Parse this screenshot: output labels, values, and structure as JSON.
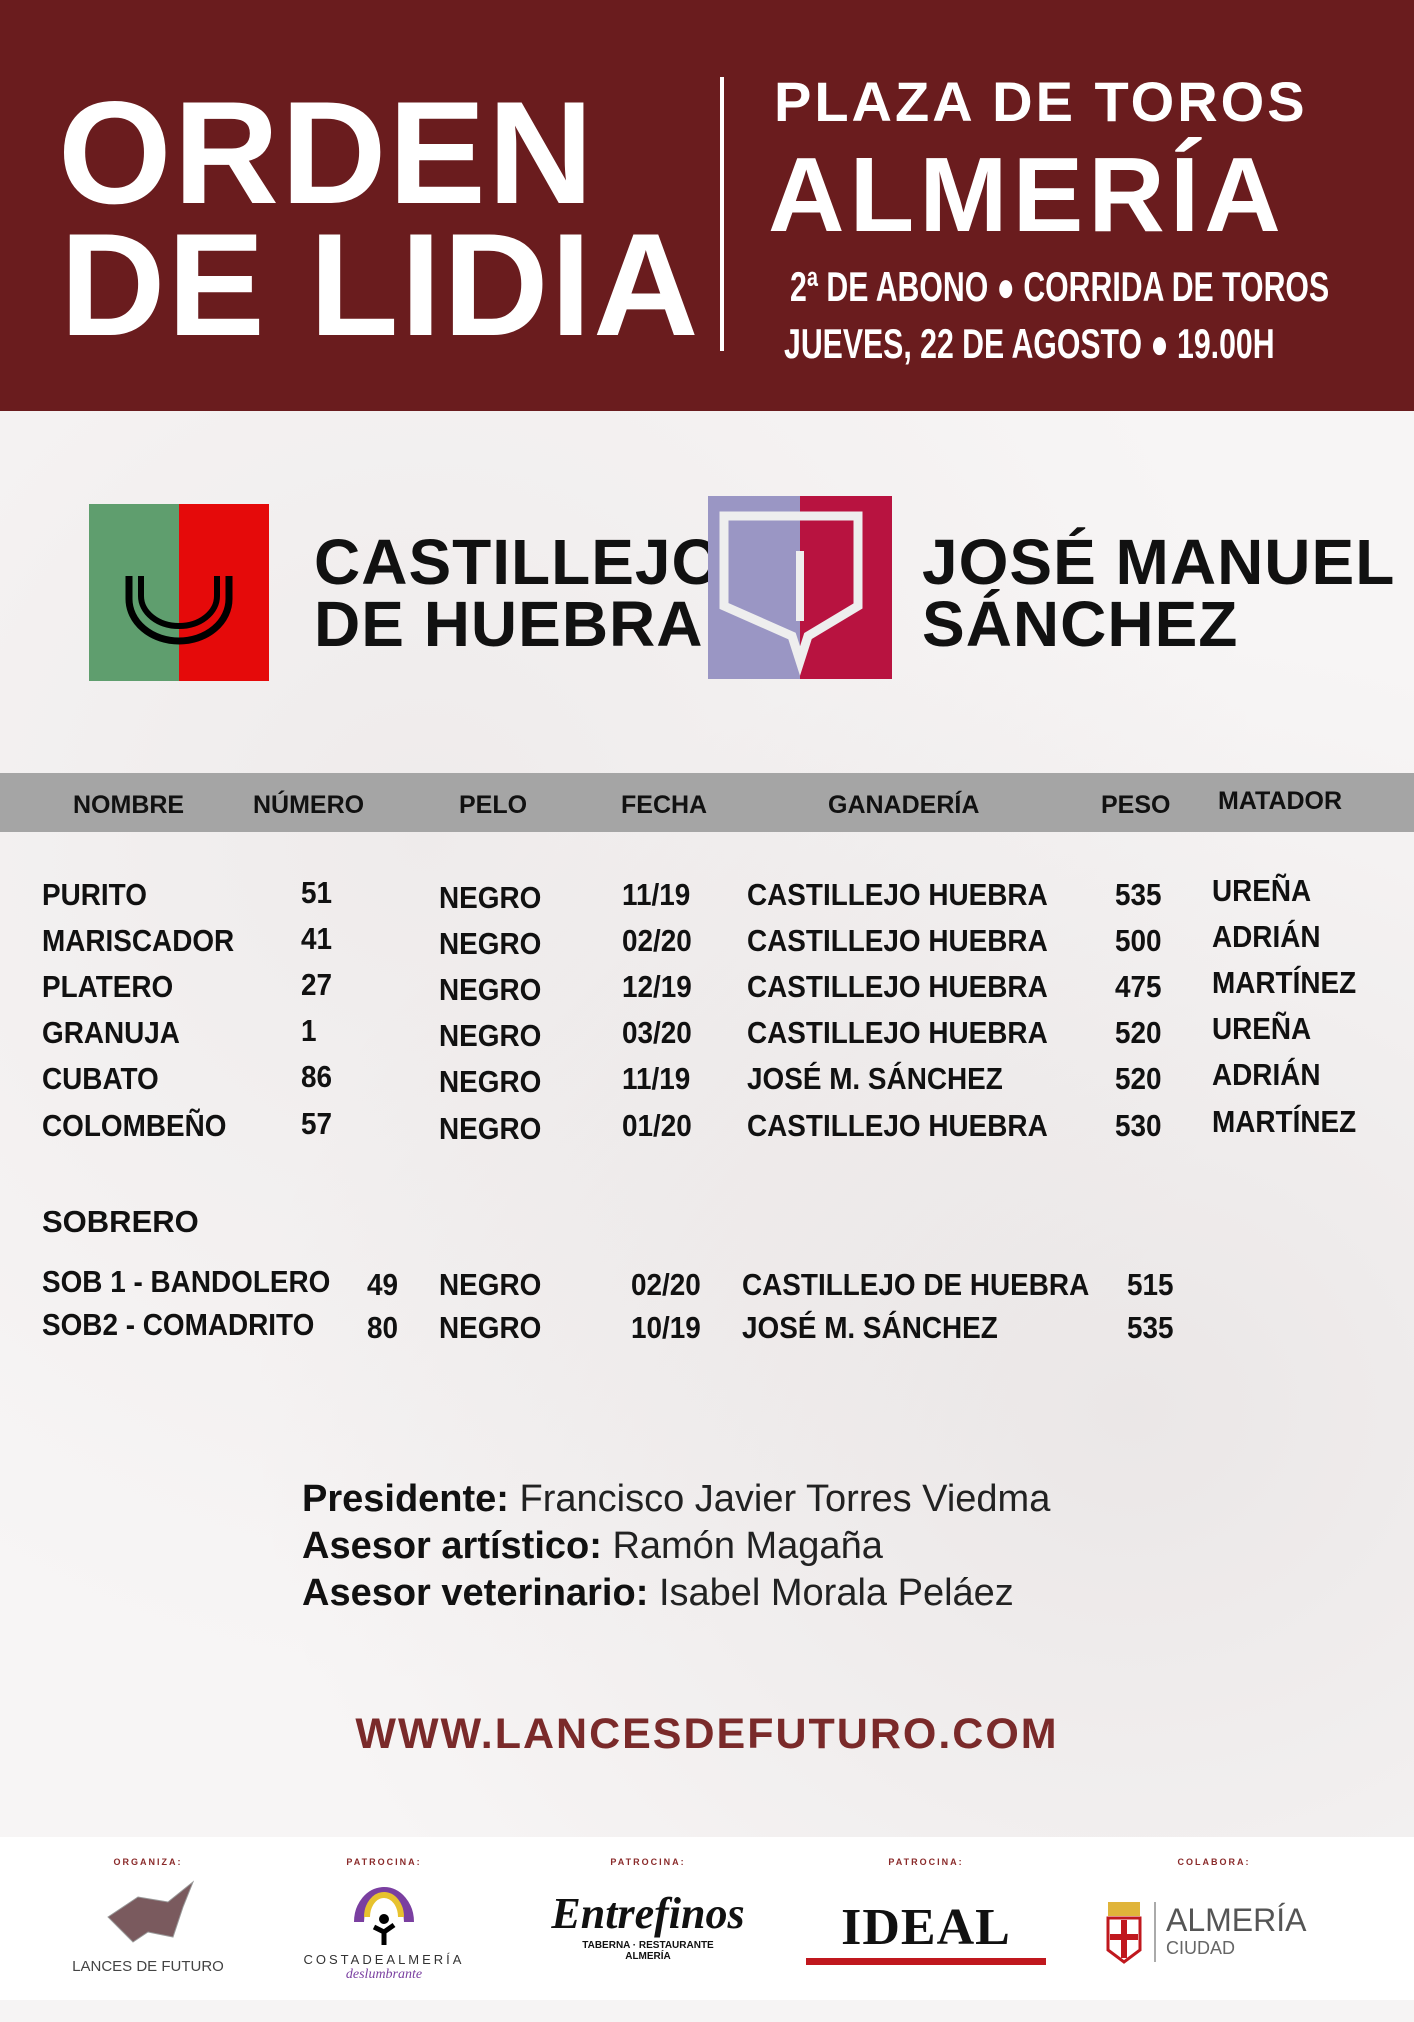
{
  "header": {
    "title_line1": "ORDEN",
    "title_line2": "DE LIDIA",
    "venue_line1": "PLAZA DE TOROS",
    "venue_line2": "ALMERÍA",
    "event_line1": "2ª DE ABONO ● CORRIDA DE TOROS",
    "event_line2": "JUEVES, 22 DE AGOSTO  ● 19.00H",
    "background_color": "#6a1c1e"
  },
  "ganaderias": [
    {
      "name_line1": "CASTILLEJO",
      "name_line2": "DE HUEBRA",
      "colors": [
        "#5f9e6e",
        "#e50a0a"
      ]
    },
    {
      "name_line1": "JOSÉ MANUEL",
      "name_line2": "SÁNCHEZ",
      "colors": [
        "#9a96c4",
        "#b81340"
      ]
    }
  ],
  "table": {
    "headers": [
      "NOMBRE",
      "NÚMERO",
      "PELO",
      "FECHA",
      "GANADERÍA",
      "PESO",
      "MATADOR"
    ],
    "rows": [
      [
        "PURITO",
        "51",
        "NEGRO",
        "11/19",
        "CASTILLEJO HUEBRA",
        "535",
        "UREÑA"
      ],
      [
        "MARISCADOR",
        "41",
        "NEGRO",
        "02/20",
        "CASTILLEJO HUEBRA",
        "500",
        "ADRIÁN"
      ],
      [
        "PLATERO",
        "27",
        "NEGRO",
        "12/19",
        "CASTILLEJO HUEBRA",
        "475",
        "MARTÍNEZ"
      ],
      [
        "GRANUJA",
        "1",
        "NEGRO",
        "03/20",
        "CASTILLEJO HUEBRA",
        "520",
        "UREÑA"
      ],
      [
        "CUBATO",
        "86",
        "NEGRO",
        "11/19",
        "JOSÉ M. SÁNCHEZ",
        "520",
        "ADRIÁN"
      ],
      [
        "COLOMBEÑO",
        "57",
        "NEGRO",
        "01/20",
        "CASTILLEJO HUEBRA",
        "530",
        "MARTÍNEZ"
      ]
    ],
    "sobrero_title": "SOBRERO",
    "sobreros": [
      [
        "SOB 1 - BANDOLERO",
        "49",
        "NEGRO",
        "02/20",
        "CASTILLEJO DE HUEBRA",
        "515"
      ],
      [
        "SOB2 - COMADRITO",
        "80",
        "NEGRO",
        "10/19",
        "JOSÉ M. SÁNCHEZ",
        "535"
      ]
    ]
  },
  "officials": [
    {
      "role": "Presidente:",
      "name": "Francisco Javier Torres Viedma"
    },
    {
      "role": "Asesor artístico:",
      "name": "Ramón Magaña"
    },
    {
      "role": "Asesor veterinario:",
      "name": "Isabel Morala Peláez"
    }
  ],
  "url": "WWW.LANCESDEFUTURO.COM",
  "footer": {
    "sponsors": [
      {
        "label": "ORGANIZA:",
        "name": "LANCES DE FUTURO"
      },
      {
        "label": "PATROCINA:",
        "name": "COSTADEALMERÍA",
        "tagline": "deslumbrante"
      },
      {
        "label": "PATROCINA:",
        "name": "Entrefinos",
        "tagline": "TABERNA · RESTAURANTE",
        "city": "ALMERÍA"
      },
      {
        "label": "PATROCINA:",
        "name": "IDEAL"
      },
      {
        "label": "COLABORA:",
        "name": "ALMERÍA",
        "tagline": "CIUDAD"
      }
    ]
  }
}
